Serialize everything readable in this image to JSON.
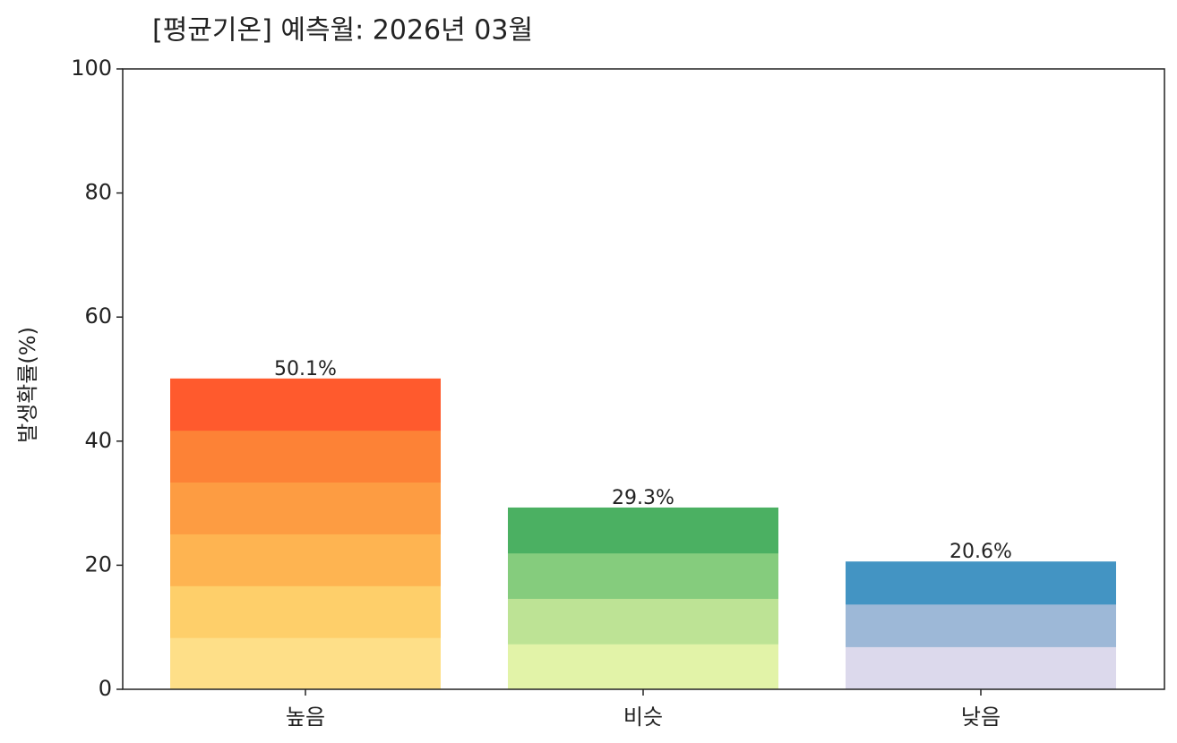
{
  "chart_data": {
    "type": "bar",
    "title": "[평균기온] 예측월: 2026년 03월",
    "y_label": "발생확률(%)",
    "categories": [
      "높음",
      "비슷",
      "낮음"
    ],
    "values": [
      50.1,
      29.3,
      20.6
    ],
    "value_labels": [
      "50.1%",
      "29.3%",
      "20.6%"
    ],
    "shade_colors": [
      [
        "#fedf88",
        "#fecf6a",
        "#feb451",
        "#fd9c42",
        "#fd8236",
        "#ff5a2d"
      ],
      [
        "#e2f3a8",
        "#bde395",
        "#85cc7d",
        "#4bb062"
      ],
      [
        "#dcd9ec",
        "#9db8d7",
        "#4394c3"
      ]
    ],
    "ylim": [
      0,
      100
    ],
    "yticks": [
      0,
      20,
      40,
      60,
      80,
      100
    ],
    "grid": false
  }
}
